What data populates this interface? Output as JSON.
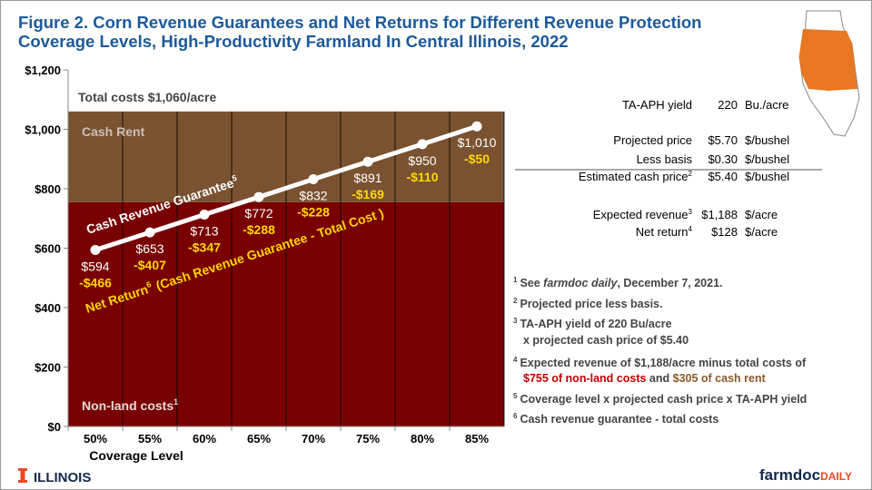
{
  "chart_data": {
    "type": "line",
    "title": [
      "Figure 2. Corn Revenue Guarantees and Net Returns for Different Revenue Protection",
      "Coverage Levels, High-Productivity Farmland In Central Illinois, 2022"
    ],
    "categories": [
      "50%",
      "55%",
      "60%",
      "65%",
      "70%",
      "75%",
      "80%",
      "85%"
    ],
    "x_label": "Coverage Level",
    "series": [
      {
        "name": "Cash Revenue Guarantee",
        "note": "5",
        "color": "#ffffff",
        "values": [
          594,
          653,
          713,
          772,
          832,
          891,
          950,
          1010
        ],
        "value_labels": [
          "$594",
          "$653",
          "$713",
          "$772",
          "$832",
          "$891",
          "$950",
          "$1,010"
        ]
      },
      {
        "name": "Net Return",
        "note": "6",
        "detail": "(Cash Revenue Guarantee - Total Cost )",
        "color": "#ffd700",
        "values": [
          -466,
          -407,
          -347,
          -288,
          -228,
          -169,
          -110,
          -50
        ],
        "value_labels": [
          "-$466",
          "-$407",
          "-$347",
          "-$288",
          "-$228",
          "-$169",
          "-$110",
          "-$50"
        ]
      }
    ],
    "costs": [
      {
        "label": "Non-land costs",
        "note": "1",
        "value": 755,
        "color": "#790000"
      },
      {
        "label": "Cash Rent",
        "value": 305,
        "color": "#7a5230"
      }
    ],
    "total_label": "Total costs $1,060/acre",
    "ylim": [
      0,
      1200
    ],
    "yticks": [
      {
        "value": 0,
        "label": "$0"
      },
      {
        "value": 200,
        "label": "$200"
      },
      {
        "value": 400,
        "label": "$400"
      },
      {
        "value": 600,
        "label": "$600"
      },
      {
        "value": 800,
        "label": "$800"
      },
      {
        "value": 1000,
        "label": "$1,000"
      },
      {
        "value": 1200,
        "label": "$1,200"
      }
    ]
  },
  "table": {
    "rows": [
      {
        "label": "TA-APH yield",
        "value": "220",
        "unit": "Bu./acre"
      },
      {
        "label": "Projected price",
        "value": "$5.70",
        "unit": "$/bushel"
      },
      {
        "label": "Less basis",
        "value": "$0.30",
        "unit": "$/bushel"
      },
      {
        "label": "Estimated cash price",
        "note": "2",
        "value": "$5.40",
        "unit": "$/bushel"
      },
      {
        "label": "Expected revenue",
        "note": "3",
        "value": "$1,188",
        "unit": "$/acre"
      },
      {
        "label": "Net return",
        "note": "4",
        "value": "$128",
        "unit": "$/acre"
      }
    ]
  },
  "footnotes": [
    {
      "mark": "1",
      "lines": [
        [
          {
            "text": "See "
          },
          {
            "text": "farmdoc daily",
            "italic": true
          },
          {
            "text": ", December 7, 2021."
          }
        ]
      ]
    },
    {
      "mark": "2",
      "lines": [
        [
          {
            "text": "Projected price less basis."
          }
        ]
      ]
    },
    {
      "mark": "3",
      "lines": [
        [
          {
            "text": "TA-APH yield of 220 Bu/acre"
          }
        ],
        [
          {
            "text": "x projected cash price of $5.40"
          }
        ]
      ]
    },
    {
      "mark": "4",
      "lines": [
        [
          {
            "text": "Expected revenue of $1,188/acre minus total costs of"
          }
        ],
        [
          {
            "text": "$755 of non-land costs",
            "color": "#c00000"
          },
          {
            "text": " and "
          },
          {
            "text": "$305 of cash rent",
            "color": "#8b5a2b"
          }
        ]
      ]
    },
    {
      "mark": "5",
      "lines": [
        [
          {
            "text": "Coverage level x projected cash price x TA-APH yield"
          }
        ]
      ]
    },
    {
      "mark": "6",
      "lines": [
        [
          {
            "text": "Cash revenue guarantee - total costs"
          }
        ]
      ]
    }
  ],
  "logos": {
    "left": "ILLINOIS",
    "right_a": "farmdoc",
    "right_b": "DAILY"
  }
}
